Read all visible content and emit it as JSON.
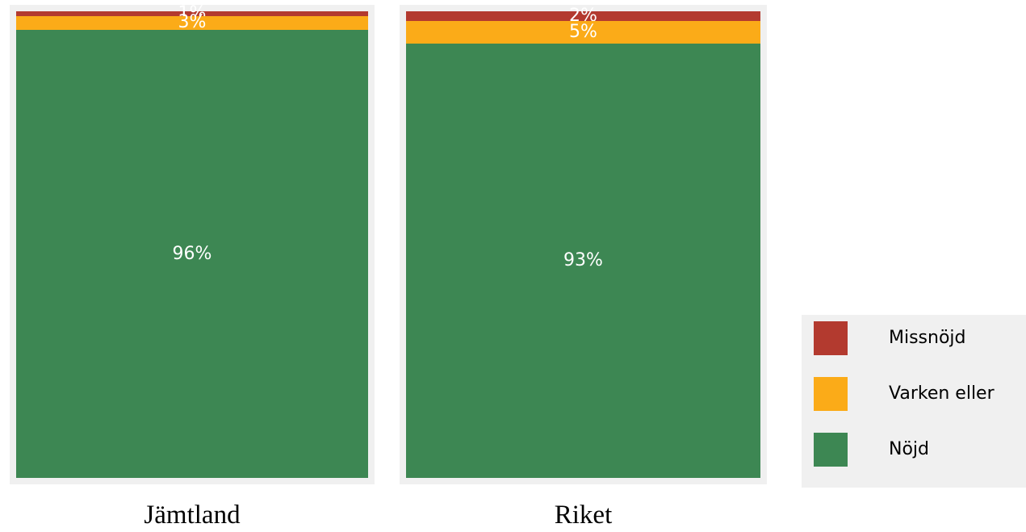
{
  "chart_data": {
    "type": "bar",
    "stacked": true,
    "categories": [
      "Jämtland",
      "Riket"
    ],
    "series": [
      {
        "name": "Missnöjd",
        "color": "#b33a2f",
        "values": [
          1,
          2
        ],
        "labels": [
          "1%",
          "2%"
        ]
      },
      {
        "name": "Varken eller",
        "color": "#fbab18",
        "values": [
          3,
          5
        ],
        "labels": [
          "3%",
          "5%"
        ]
      },
      {
        "name": "Nöjd",
        "color": "#3d8753",
        "values": [
          96,
          93
        ],
        "labels": [
          "96%",
          "93%"
        ]
      }
    ],
    "ylim": [
      0,
      100
    ],
    "legend": "right-bottom",
    "grid": false,
    "label_color": "#ffffff"
  }
}
